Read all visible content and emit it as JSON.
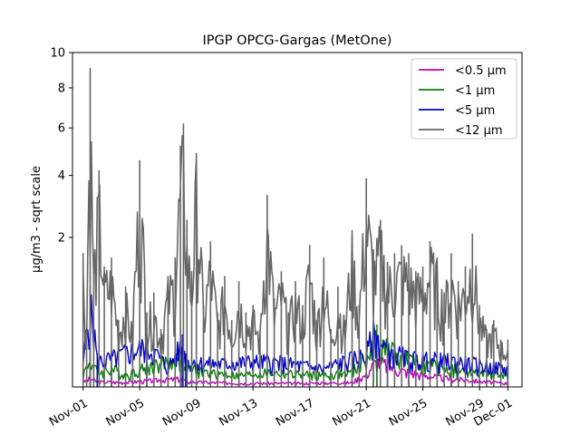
{
  "chart_data": {
    "type": "line",
    "title": "IPGP OPCG-Gargas (MetOne)",
    "xlabel": "",
    "ylabel": "µg/m3 - sqrt scale",
    "y_scale": "sqrt",
    "ylim": [
      0,
      10
    ],
    "yticks": [
      2,
      4,
      6,
      8,
      10
    ],
    "xlim": [
      "2023-10-31T06:00",
      "2023-12-02T00:00"
    ],
    "x_tick_labels": [
      "Nov-01",
      "Nov-05",
      "Nov-09",
      "Nov-13",
      "Nov-17",
      "Nov-21",
      "Nov-25",
      "Nov-29",
      "Dec-01"
    ],
    "x_tick_dates": [
      "2023-11-01",
      "2023-11-05",
      "2023-11-09",
      "2023-11-13",
      "2023-11-17",
      "2023-11-21",
      "2023-11-25",
      "2023-11-29",
      "2023-12-01"
    ],
    "legend_position": "top-right",
    "grid": false,
    "series": [
      {
        "name": "<0.5 µm",
        "color": "#bf00bf",
        "x": [
          "2023-11-01T00:00",
          "2023-11-01T12:00",
          "2023-11-02T00:00",
          "2023-11-04T00:00",
          "2023-11-08T00:00",
          "2023-11-08T06:00",
          "2023-11-12T00:00",
          "2023-11-16T00:00",
          "2023-11-20T00:00",
          "2023-11-21T00:00",
          "2023-11-21T18:00",
          "2023-11-22T12:00",
          "2023-11-23T12:00",
          "2023-11-25T00:00",
          "2023-11-27T00:00",
          "2023-11-30T00:00",
          "2023-12-01T00:00"
        ],
        "y": [
          0.003,
          0.01,
          0.004,
          0.003,
          0.01,
          0.004,
          0.002,
          0.002,
          0.003,
          0.02,
          0.1,
          0.07,
          0.04,
          0.02,
          0.01,
          0.003,
          0.002
        ]
      },
      {
        "name": "<1 µm",
        "color": "#008000",
        "x": [
          "2023-11-01T00:00",
          "2023-11-01T12:00",
          "2023-11-02T00:00",
          "2023-11-03T00:00",
          "2023-11-04T00:00",
          "2023-11-05T12:00",
          "2023-11-08T00:00",
          "2023-11-08T06:00",
          "2023-11-10T00:00",
          "2023-11-12T00:00",
          "2023-11-14T00:00",
          "2023-11-18T00:00",
          "2023-11-20T00:00",
          "2023-11-21T00:00",
          "2023-11-21T18:00",
          "2023-11-22T12:00",
          "2023-11-23T12:00",
          "2023-11-25T00:00",
          "2023-11-27T00:00",
          "2023-11-28T12:00",
          "2023-12-01T00:00"
        ],
        "y": [
          0.02,
          0.1,
          0.03,
          0.05,
          0.02,
          0.06,
          0.12,
          0.05,
          0.03,
          0.02,
          0.03,
          0.02,
          0.03,
          0.12,
          0.35,
          0.22,
          0.12,
          0.08,
          0.05,
          0.03,
          0.02
        ]
      },
      {
        "name": "<5 µm",
        "color": "#0000cc",
        "x": [
          "2023-11-01T00:00",
          "2023-11-01T12:00",
          "2023-11-02T00:00",
          "2023-11-03T00:00",
          "2023-11-05T12:00",
          "2023-11-07T00:00",
          "2023-11-08T00:00",
          "2023-11-08T06:00",
          "2023-11-10T00:00",
          "2023-11-14T00:00",
          "2023-11-18T00:00",
          "2023-11-21T00:00",
          "2023-11-21T12:00",
          "2023-11-22T12:00",
          "2023-11-24T00:00",
          "2023-11-27T00:00",
          "2023-12-01T00:00"
        ],
        "y": [
          0.05,
          0.9,
          0.1,
          0.12,
          0.25,
          0.05,
          0.25,
          0.1,
          0.08,
          0.1,
          0.05,
          0.15,
          0.4,
          0.2,
          0.12,
          0.1,
          0.05
        ]
      },
      {
        "name": "<12 µm",
        "color": "#666666",
        "x": [
          "2023-11-01T00:00",
          "2023-11-01T06:00",
          "2023-11-01T12:00",
          "2023-11-01T18:00",
          "2023-11-02T03:00",
          "2023-11-02T12:00",
          "2023-11-03T00:00",
          "2023-11-03T12:00",
          "2023-11-04T00:00",
          "2023-11-04T12:00",
          "2023-11-05T00:00",
          "2023-11-05T12:00",
          "2023-11-06T00:00",
          "2023-11-06T12:00",
          "2023-11-07T00:00",
          "2023-11-07T12:00",
          "2023-11-07T21:00",
          "2023-11-08T02:00",
          "2023-11-08T08:00",
          "2023-11-08T16:00",
          "2023-11-09T00:00",
          "2023-11-09T12:00",
          "2023-11-10T00:00",
          "2023-11-10T12:00",
          "2023-11-11T00:00",
          "2023-11-11T12:00",
          "2023-11-12T00:00",
          "2023-11-12T12:00",
          "2023-11-13T00:00",
          "2023-11-13T12:00",
          "2023-11-14T00:00",
          "2023-11-14T12:00",
          "2023-11-15T00:00",
          "2023-11-15T12:00",
          "2023-11-16T00:00",
          "2023-11-16T12:00",
          "2023-11-17T00:00",
          "2023-11-17T12:00",
          "2023-11-18T00:00",
          "2023-11-18T12:00",
          "2023-11-19T00:00",
          "2023-11-19T12:00",
          "2023-11-20T00:00",
          "2023-11-20T12:00",
          "2023-11-21T00:00",
          "2023-11-21T12:00",
          "2023-11-22T00:00",
          "2023-11-22T12:00",
          "2023-11-23T00:00",
          "2023-11-23T12:00",
          "2023-11-24T00:00",
          "2023-11-24T12:00",
          "2023-11-25T00:00",
          "2023-11-25T12:00",
          "2023-11-26T00:00",
          "2023-11-26T12:00",
          "2023-11-27T00:00",
          "2023-11-27T12:00",
          "2023-11-28T00:00",
          "2023-11-28T12:00",
          "2023-11-29T00:00",
          "2023-11-29T12:00",
          "2023-11-30T00:00",
          "2023-11-30T12:00",
          "2023-12-01T00:00"
        ],
        "y": [
          1.6,
          0.3,
          9.1,
          1.5,
          4.2,
          1.3,
          1.5,
          0.4,
          0.9,
          0.3,
          4.6,
          0.5,
          0.8,
          0.3,
          1.1,
          1.5,
          5.2,
          6.2,
          2.5,
          1.2,
          4.9,
          0.6,
          1.9,
          0.5,
          1.1,
          0.4,
          1.0,
          0.5,
          0.6,
          0.3,
          3.3,
          0.7,
          1.2,
          0.5,
          1.0,
          0.6,
          1.8,
          0.4,
          1.5,
          0.3,
          0.9,
          0.4,
          2.2,
          0.6,
          3.9,
          1.7,
          2.5,
          1.4,
          1.6,
          1.8,
          1.6,
          1.2,
          1.3,
          1.9,
          1.5,
          0.8,
          1.6,
          1.0,
          1.3,
          2.1,
          0.6,
          0.3,
          0.4,
          0.2,
          0.2
        ]
      }
    ]
  }
}
